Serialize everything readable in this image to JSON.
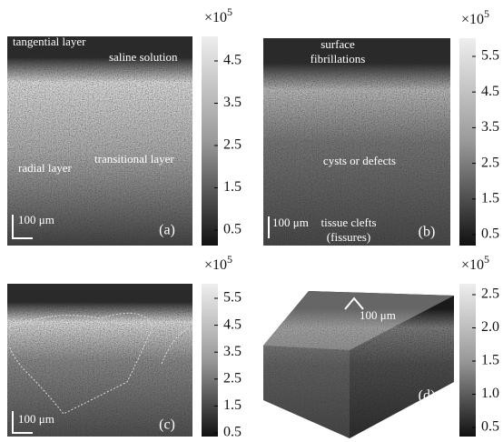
{
  "scale_label": {
    "base": "×10",
    "exponent": "5"
  },
  "panels": [
    {
      "label": "(a)",
      "texts": [
        "tangential layer",
        "saline solution",
        "transitional layer",
        "radial layer"
      ],
      "scale_bar": "100 μm",
      "colorbar_ticks": [
        "4.5",
        "3.5",
        "2.5",
        "1.5",
        "0.5"
      ]
    },
    {
      "label": "(b)",
      "texts": [
        "surface",
        "fibrillations",
        "cysts or defects",
        "tissue clefts",
        "(fissures)"
      ],
      "scale_bar": "100 μm",
      "colorbar_ticks": [
        "5.5",
        "4.5",
        "3.5",
        "2.5",
        "1.5",
        "0.5"
      ]
    },
    {
      "label": "(c)",
      "texts": [],
      "scale_bar": "100 μm",
      "colorbar_ticks": [
        "5.5",
        "4.5",
        "3.5",
        "2.5",
        "1.5",
        "0.5"
      ]
    },
    {
      "label": "(d)",
      "texts": [],
      "scale_bar": "100 μm",
      "colorbar_ticks": [
        "2.5",
        "2.0",
        "1.5",
        "1.0",
        "0.5"
      ]
    }
  ]
}
